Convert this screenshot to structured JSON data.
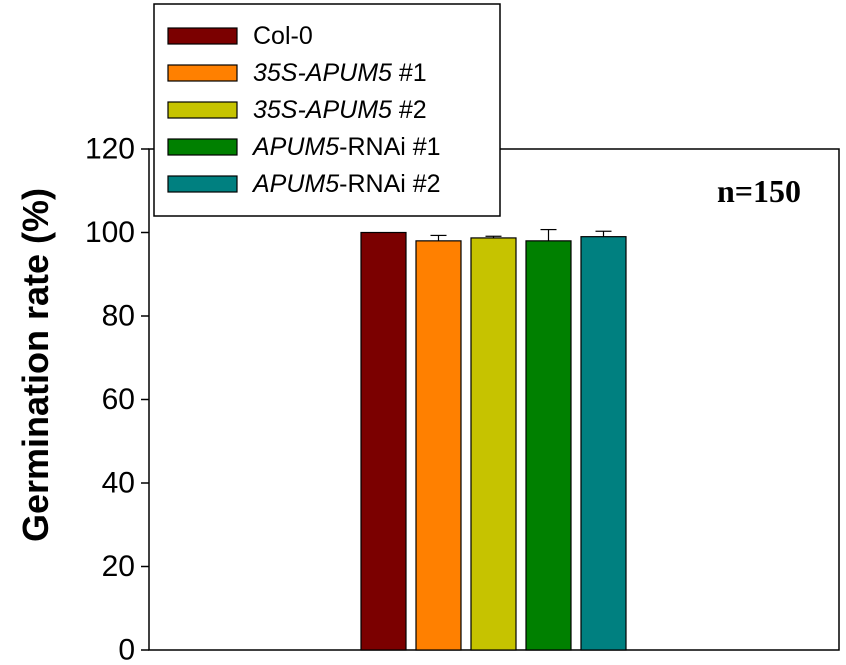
{
  "chart_data": {
    "type": "bar",
    "title": "",
    "xlabel": "",
    "ylabel": "Germination rate (%)",
    "ylim": [
      0,
      120
    ],
    "yticks": [
      0,
      20,
      40,
      60,
      80,
      100,
      120
    ],
    "grid": false,
    "legend_position": "top-left",
    "annotation": "n=150",
    "series": [
      {
        "name": "Col-0",
        "name_parts": [
          {
            "text": "Col-0",
            "italic": false
          }
        ],
        "value": 100,
        "error": 0,
        "color": "#7b0000"
      },
      {
        "name": "35S-APUM5 #1",
        "name_parts": [
          {
            "text": "35S-APUM5",
            "italic": true
          },
          {
            "text": " #1",
            "italic": false
          }
        ],
        "value": 98,
        "error": 1.3,
        "color": "#ff8000"
      },
      {
        "name": "35S-APUM5 #2",
        "name_parts": [
          {
            "text": "35S-APUM5",
            "italic": true
          },
          {
            "text": " #2",
            "italic": false
          }
        ],
        "value": 98.7,
        "error": 0.4,
        "color": "#c6c300"
      },
      {
        "name": "APUM5-RNAi #1",
        "name_parts": [
          {
            "text": "APUM5",
            "italic": true
          },
          {
            "text": "-RNAi #1",
            "italic": false
          }
        ],
        "value": 98,
        "error": 2.7,
        "color": "#008000"
      },
      {
        "name": "APUM5-RNAi #2",
        "name_parts": [
          {
            "text": "APUM5",
            "italic": true
          },
          {
            "text": "-RNAi #2",
            "italic": false
          }
        ],
        "value": 99,
        "error": 1.3,
        "color": "#008080"
      }
    ]
  }
}
